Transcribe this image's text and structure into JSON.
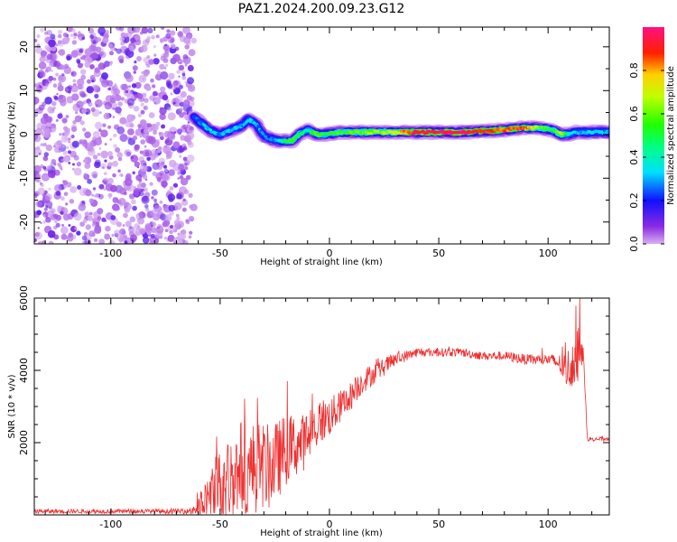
{
  "title": "PAZ1.2024.200.09.23.G12",
  "chart_data": [
    {
      "type": "heatmap",
      "name": "spectrogram",
      "xlabel": "Height of straight line (km)",
      "ylabel": "Frequency (Hz)",
      "xlim": [
        -135,
        128
      ],
      "ylim": [
        -25,
        24.5
      ],
      "xticks": [
        -100,
        -50,
        0,
        50,
        100
      ],
      "yticks": [
        -20,
        -10,
        0,
        10,
        20
      ],
      "colorbar": {
        "label": "Normalized spectral amplitude",
        "range": [
          0,
          1
        ],
        "ticks": [
          "0.0",
          "0.2",
          "0.4",
          "0.6",
          "0.8"
        ],
        "colormap": "gist_rainbow_r"
      },
      "noise_region_x": [
        -135,
        -62
      ],
      "ridge": {
        "x": [
          -62,
          -55,
          -50,
          -45,
          -40,
          -37,
          -33,
          -30,
          -27,
          -24,
          -20,
          -17,
          -14,
          -10,
          -6,
          -2,
          5,
          15,
          30,
          40,
          60,
          80,
          88,
          96,
          102,
          106,
          109,
          113,
          118,
          128
        ],
        "freq": [
          4,
          1,
          0,
          1,
          2,
          3.5,
          2,
          -0.5,
          -1,
          -1.5,
          -1.5,
          -1.5,
          0,
          1,
          0,
          0,
          0.5,
          0.5,
          0.5,
          0.5,
          0.5,
          1,
          1.5,
          1.5,
          1,
          0,
          0,
          0.5,
          0.5,
          0.5
        ],
        "amplitude": [
          0.25,
          0.35,
          0.3,
          0.35,
          0.3,
          0.35,
          0.3,
          0.25,
          0.25,
          0.3,
          0.5,
          0.55,
          0.5,
          0.4,
          0.6,
          0.5,
          0.55,
          0.6,
          0.7,
          0.95,
          0.95,
          0.85,
          0.9,
          0.6,
          0.5,
          0.75,
          0.4,
          0.3,
          0.35,
          0.3
        ]
      }
    },
    {
      "type": "line",
      "name": "snr",
      "xlabel": "Height of straight line (km)",
      "ylabel": "SNR (10 * v/v)",
      "xlim": [
        -135,
        128
      ],
      "ylim": [
        0,
        6000
      ],
      "xticks": [
        -100,
        -50,
        0,
        50,
        100
      ],
      "yticks": [
        2000,
        4000,
        6000
      ],
      "color": "#ee3030",
      "series": [
        {
          "x": [
            -135,
            -100,
            -65,
            -60,
            -56,
            -52,
            -48,
            -44,
            -40,
            -36,
            -32,
            -28,
            -24,
            -20,
            -16,
            -12,
            -8,
            -4,
            0,
            5,
            10,
            15,
            20,
            25,
            30,
            35,
            40,
            50,
            60,
            70,
            80,
            90,
            100,
            105,
            108,
            110,
            112,
            114,
            115,
            116,
            118,
            128
          ],
          "base": [
            100,
            100,
            100,
            200,
            400,
            700,
            900,
            1000,
            1300,
            1200,
            1400,
            1300,
            1500,
            1800,
            1900,
            2000,
            2300,
            2600,
            2700,
            3000,
            3300,
            3700,
            3900,
            4100,
            4300,
            4400,
            4500,
            4500,
            4500,
            4400,
            4400,
            4300,
            4300,
            4200,
            4000,
            4100,
            4300,
            4600,
            4700,
            4500,
            2100,
            2100
          ],
          "noise": [
            60,
            60,
            70,
            300,
            700,
            1000,
            1100,
            1300,
            1400,
            1400,
            1200,
            1200,
            1100,
            1000,
            900,
            800,
            700,
            650,
            550,
            450,
            400,
            350,
            300,
            250,
            200,
            150,
            130,
            120,
            120,
            120,
            130,
            150,
            160,
            250,
            500,
            600,
            700,
            900,
            600,
            300,
            60,
            60
          ]
        }
      ]
    }
  ]
}
